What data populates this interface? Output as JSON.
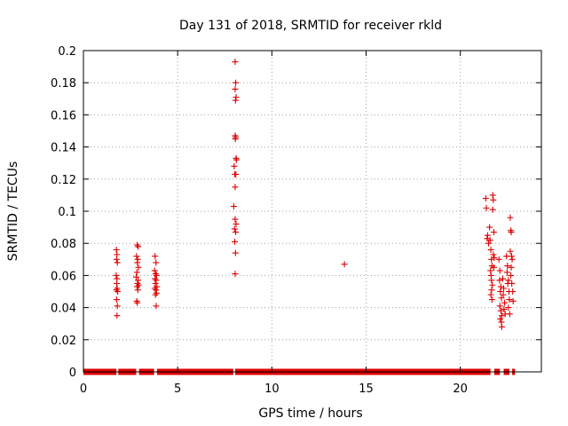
{
  "chart_data": {
    "type": "scatter",
    "title": "Day 131 of 2018, SRMTID for receiver rkld",
    "xlabel": "GPS time / hours",
    "ylabel": "SRMTID / TECUs",
    "xlim": [
      0,
      24.3
    ],
    "ylim": [
      0,
      0.2
    ],
    "xticks": [
      0,
      5,
      10,
      15,
      20
    ],
    "yticks": [
      0,
      0.02,
      0.04,
      0.06,
      0.08,
      0.1,
      0.12,
      0.14,
      0.16,
      0.18,
      0.2
    ],
    "ytick_labels": [
      "0",
      "0.02",
      "0.04",
      "0.06",
      "0.08",
      "0.1",
      "0.12",
      "0.14",
      "0.16",
      "0.18",
      "0.2"
    ],
    "xtick_labels": [
      "0",
      "5",
      "10",
      "15",
      "20"
    ],
    "grid": true,
    "marker": "+",
    "color": "#dd0000",
    "zero_baseline": {
      "y": 0,
      "segments": [
        [
          0.0,
          1.75
        ],
        [
          1.85,
          2.8
        ],
        [
          2.95,
          3.75
        ],
        [
          3.9,
          7.95
        ],
        [
          8.05,
          21.6
        ],
        [
          21.8,
          22.1
        ],
        [
          22.3,
          22.6
        ],
        [
          22.75,
          22.9
        ]
      ]
    },
    "points": [
      [
        1.75,
        0.076
      ],
      [
        1.78,
        0.073
      ],
      [
        1.76,
        0.07
      ],
      [
        1.8,
        0.068
      ],
      [
        1.74,
        0.06
      ],
      [
        1.78,
        0.058
      ],
      [
        1.77,
        0.055
      ],
      [
        1.79,
        0.052
      ],
      [
        1.75,
        0.051
      ],
      [
        1.82,
        0.05
      ],
      [
        1.76,
        0.045
      ],
      [
        1.8,
        0.041
      ],
      [
        1.78,
        0.035
      ],
      [
        2.85,
        0.079
      ],
      [
        2.9,
        0.078
      ],
      [
        2.82,
        0.072
      ],
      [
        2.88,
        0.07
      ],
      [
        2.86,
        0.068
      ],
      [
        2.92,
        0.065
      ],
      [
        2.84,
        0.062
      ],
      [
        2.8,
        0.059
      ],
      [
        2.9,
        0.057
      ],
      [
        2.87,
        0.055
      ],
      [
        2.93,
        0.054
      ],
      [
        2.85,
        0.053
      ],
      [
        2.89,
        0.051
      ],
      [
        2.83,
        0.044
      ],
      [
        2.86,
        0.043
      ],
      [
        3.8,
        0.072
      ],
      [
        3.85,
        0.068
      ],
      [
        3.78,
        0.063
      ],
      [
        3.83,
        0.061
      ],
      [
        3.88,
        0.06
      ],
      [
        3.8,
        0.058
      ],
      [
        3.86,
        0.057
      ],
      [
        3.82,
        0.055
      ],
      [
        3.9,
        0.053
      ],
      [
        3.78,
        0.052
      ],
      [
        3.85,
        0.051
      ],
      [
        3.88,
        0.049
      ],
      [
        3.82,
        0.048
      ],
      [
        3.86,
        0.041
      ],
      [
        8.05,
        0.193
      ],
      [
        8.08,
        0.18
      ],
      [
        8.05,
        0.176
      ],
      [
        8.1,
        0.171
      ],
      [
        8.07,
        0.169
      ],
      [
        8.05,
        0.147
      ],
      [
        8.08,
        0.146
      ],
      [
        8.06,
        0.145
      ],
      [
        8.1,
        0.133
      ],
      [
        8.12,
        0.132
      ],
      [
        8.0,
        0.128
      ],
      [
        8.03,
        0.123
      ],
      [
        8.09,
        0.123
      ],
      [
        8.05,
        0.115
      ],
      [
        7.98,
        0.103
      ],
      [
        8.05,
        0.095
      ],
      [
        8.1,
        0.092
      ],
      [
        8.02,
        0.089
      ],
      [
        8.08,
        0.087
      ],
      [
        8.03,
        0.081
      ],
      [
        8.07,
        0.074
      ],
      [
        8.05,
        0.061
      ],
      [
        13.85,
        0.067
      ],
      [
        21.35,
        0.108
      ],
      [
        21.38,
        0.102
      ],
      [
        21.45,
        0.085
      ],
      [
        21.42,
        0.083
      ],
      [
        21.5,
        0.08
      ],
      [
        21.55,
        0.09
      ],
      [
        21.58,
        0.082
      ],
      [
        21.62,
        0.076
      ],
      [
        21.65,
        0.07
      ],
      [
        21.68,
        0.066
      ],
      [
        21.6,
        0.063
      ],
      [
        21.63,
        0.06
      ],
      [
        21.65,
        0.057
      ],
      [
        21.7,
        0.054
      ],
      [
        21.66,
        0.051
      ],
      [
        21.62,
        0.048
      ],
      [
        21.68,
        0.045
      ],
      [
        21.72,
        0.11
      ],
      [
        21.75,
        0.107
      ],
      [
        21.72,
        0.101
      ],
      [
        21.78,
        0.087
      ],
      [
        21.75,
        0.073
      ],
      [
        21.8,
        0.071
      ],
      [
        21.78,
        0.065
      ],
      [
        22.05,
        0.07
      ],
      [
        22.1,
        0.063
      ],
      [
        22.08,
        0.057
      ],
      [
        22.15,
        0.053
      ],
      [
        22.12,
        0.05
      ],
      [
        22.18,
        0.046
      ],
      [
        22.1,
        0.041
      ],
      [
        22.15,
        0.038
      ],
      [
        22.2,
        0.035
      ],
      [
        22.12,
        0.033
      ],
      [
        22.18,
        0.031
      ],
      [
        22.2,
        0.028
      ],
      [
        22.25,
        0.058
      ],
      [
        22.3,
        0.052
      ],
      [
        22.28,
        0.048
      ],
      [
        22.35,
        0.043
      ],
      [
        22.32,
        0.039
      ],
      [
        22.38,
        0.036
      ],
      [
        22.45,
        0.072
      ],
      [
        22.5,
        0.066
      ],
      [
        22.48,
        0.062
      ],
      [
        22.55,
        0.057
      ],
      [
        22.52,
        0.055
      ],
      [
        22.58,
        0.05
      ],
      [
        22.6,
        0.045
      ],
      [
        22.55,
        0.04
      ],
      [
        22.62,
        0.036
      ],
      [
        22.65,
        0.096
      ],
      [
        22.68,
        0.088
      ],
      [
        22.7,
        0.087
      ],
      [
        22.65,
        0.075
      ],
      [
        22.72,
        0.072
      ],
      [
        22.75,
        0.07
      ],
      [
        22.7,
        0.065
      ],
      [
        22.68,
        0.06
      ],
      [
        22.73,
        0.055
      ],
      [
        22.78,
        0.05
      ],
      [
        22.8,
        0.044
      ]
    ]
  }
}
